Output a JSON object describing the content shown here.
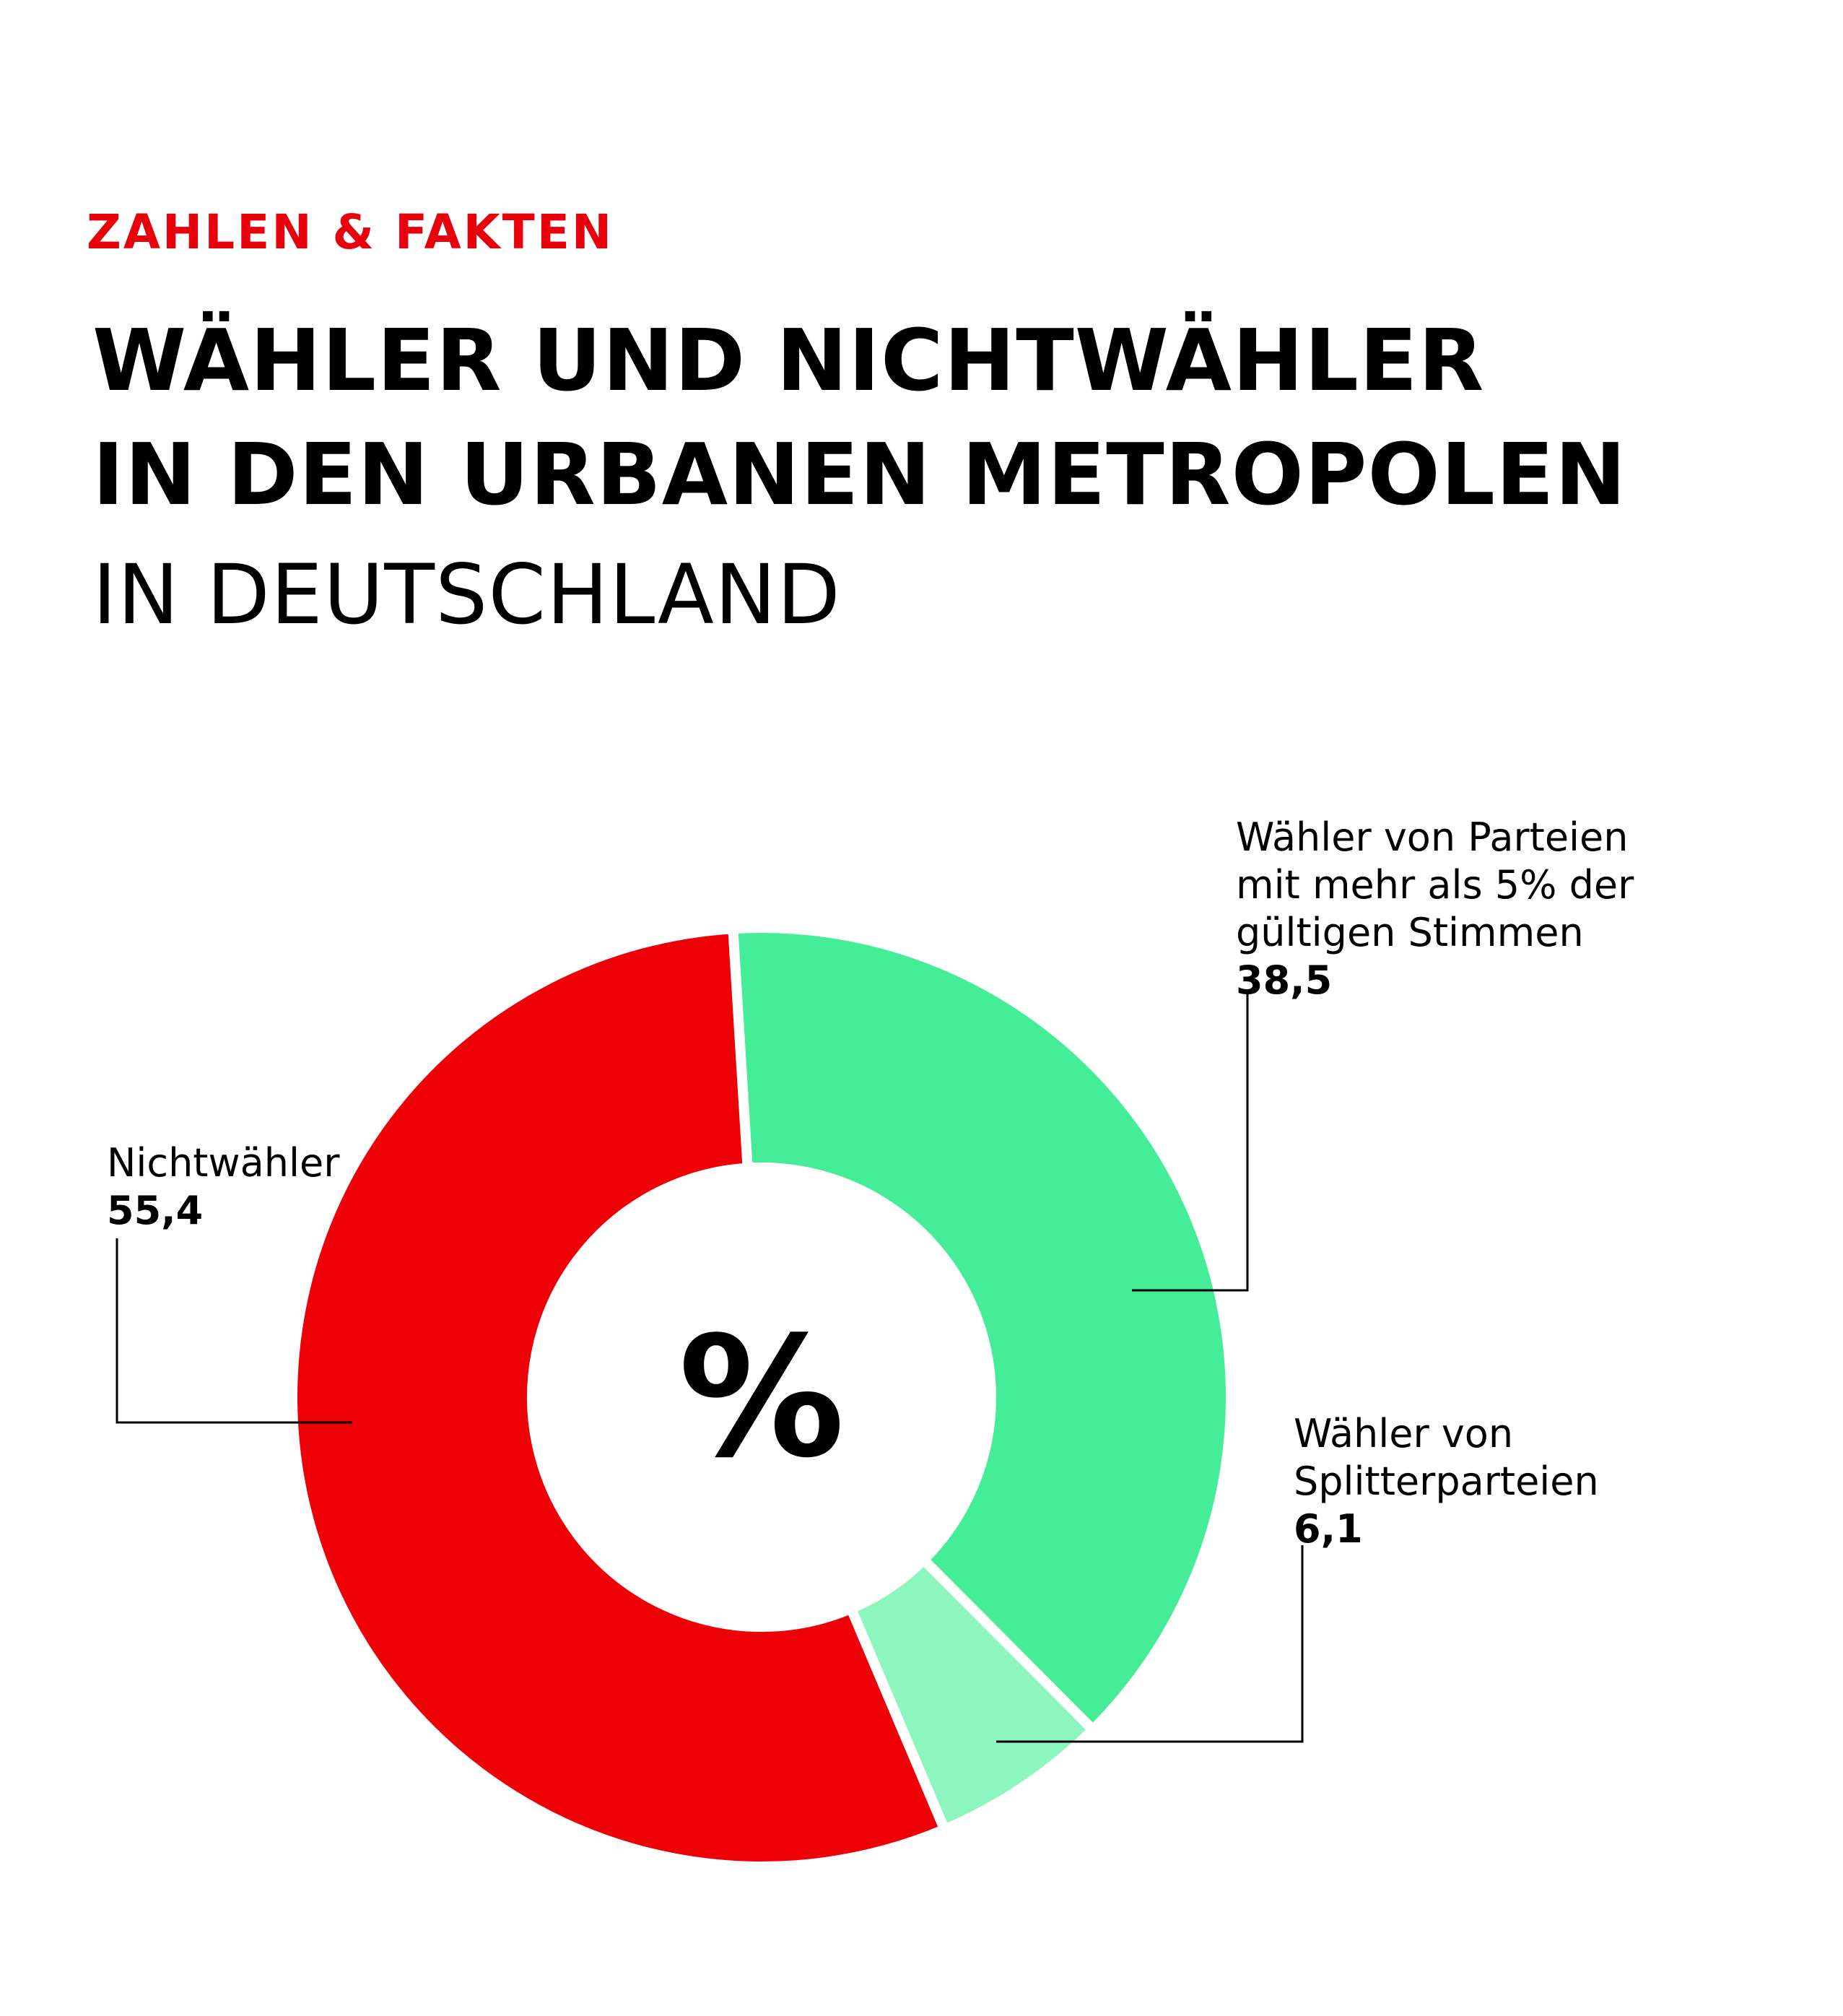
{
  "header": {
    "kicker": "ZAHLEN & FAKTEN",
    "title_line1": "WÄHLER UND NICHTWÄHLER",
    "title_line2": "IN DEN URBANEN METROPOLEN",
    "subtitle": "IN DEUTSCHLAND"
  },
  "colors": {
    "accent": "#e8000b",
    "green": "#45ed98",
    "light_green": "#8df5be"
  },
  "chart_data": {
    "type": "pie",
    "center_label": "%",
    "slices": [
      {
        "name_lines": [
          "Wähler von Parteien",
          "mit mehr als 5% der",
          "gültigen Stimmen"
        ],
        "value": 38.5,
        "value_label": "38,5",
        "color": "#45ed98"
      },
      {
        "name_lines": [
          "Wähler von",
          "Splitterparteien"
        ],
        "value": 6.1,
        "value_label": "6,1",
        "color": "#8df5be"
      },
      {
        "name_lines": [
          "Nichtwähler"
        ],
        "value": 55.4,
        "value_label": "55,4",
        "color": "#ee0007"
      }
    ]
  }
}
